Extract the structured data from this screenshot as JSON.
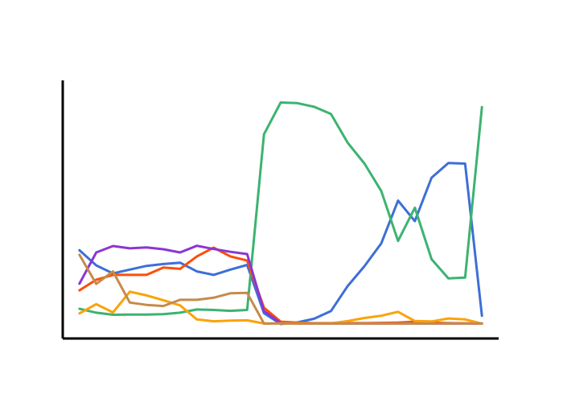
{
  "chart_data": {
    "type": "line",
    "title": "",
    "xlabel": "",
    "ylabel": "",
    "x": [
      0,
      1,
      2,
      3,
      4,
      5,
      6,
      7,
      8,
      9,
      10,
      11,
      12,
      13,
      14,
      15,
      16,
      17,
      18,
      19,
      20,
      21,
      22,
      23,
      24
    ],
    "xlim": [
      -1,
      25
    ],
    "ylim": [
      0,
      100
    ],
    "grid": false,
    "series": [
      {
        "color": "#3d6fd6",
        "values": [
          32.0,
          25.4,
          21.9,
          23.6,
          25.2,
          26.0,
          26.6,
          22.8,
          21.3,
          23.6,
          25.6,
          4.7,
          0.0,
          0.7,
          2.3,
          5.6,
          16.5,
          25.1,
          35.0,
          53.5,
          44.6,
          63.4,
          69.8,
          69.5,
          3.6
        ]
      },
      {
        "color": "#3cb371",
        "values": [
          6.6,
          4.9,
          4.0,
          4.1,
          4.1,
          4.3,
          4.9,
          6.3,
          6.1,
          5.7,
          6.1,
          82.2,
          96.0,
          95.7,
          94.1,
          91.0,
          78.5,
          69.5,
          57.6,
          36.0,
          50.4,
          28.1,
          19.8,
          20.1,
          94.0
        ]
      },
      {
        "color": "#fd4e06",
        "values": [
          14.6,
          19.2,
          21.3,
          21.3,
          21.3,
          24.5,
          23.9,
          29.3,
          33.1,
          29.3,
          27.5,
          7.1,
          1.0,
          0.6,
          0.4,
          0.4,
          0.4,
          0.4,
          0.5,
          0.6,
          1.0,
          0.6,
          0.4,
          0.3,
          0.2
        ]
      },
      {
        "color": "#8b36d3",
        "values": [
          17.5,
          31.0,
          33.8,
          32.8,
          33.2,
          32.4,
          31.0,
          33.9,
          32.5,
          31.3,
          30.3,
          5.6,
          0.4,
          0.2,
          0.2,
          0.2,
          0.2,
          0.2,
          0.2,
          0.2,
          0.2,
          0.2,
          0.2,
          0.2,
          0.2
        ]
      },
      {
        "color": "#faa307",
        "values": [
          4.6,
          8.6,
          5.0,
          14.0,
          12.4,
          10.3,
          8.1,
          2.0,
          1.2,
          1.5,
          1.6,
          0.2,
          0.3,
          0.3,
          0.3,
          0.3,
          1.3,
          2.6,
          3.6,
          5.3,
          1.3,
          1.1,
          2.4,
          2.0,
          0.2
        ]
      },
      {
        "color": "#c68a4a",
        "values": [
          30.0,
          17.4,
          22.8,
          9.3,
          8.3,
          7.8,
          10.5,
          10.5,
          11.4,
          13.3,
          13.5,
          0.2,
          0.2,
          0.2,
          0.2,
          0.2,
          0.2,
          0.2,
          0.2,
          0.2,
          0.2,
          0.2,
          0.2,
          0.2,
          0.2
        ]
      }
    ]
  }
}
